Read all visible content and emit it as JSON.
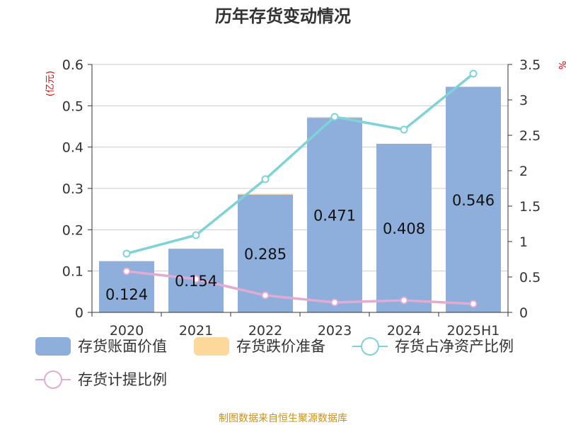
{
  "chart_data": {
    "type": "bar",
    "title": "历年存货变动情况",
    "categories": [
      "2020",
      "2021",
      "2022",
      "2023",
      "2024",
      "2025H1"
    ],
    "left_axis": {
      "unit": "(亿元)",
      "ylim": [
        0,
        0.6
      ],
      "ticks": [
        "0",
        "0.1",
        "0.2",
        "0.3",
        "0.4",
        "0.5",
        "0.6"
      ]
    },
    "right_axis": {
      "unit": "%",
      "ylim": [
        0,
        3.5
      ],
      "ticks": [
        "0",
        "0.5",
        "1",
        "1.5",
        "2",
        "2.5",
        "3",
        "3.5"
      ]
    },
    "series": [
      {
        "name": "存货账面价值",
        "type": "bar",
        "axis": "left",
        "color": "#8eaedb",
        "values": [
          0.124,
          0.154,
          0.285,
          0.471,
          0.408,
          0.546
        ],
        "labels": [
          "0.124",
          "0.154",
          "0.285",
          "0.471",
          "0.408",
          "0.546"
        ]
      },
      {
        "name": "存货跌价准备",
        "type": "bar",
        "axis": "left",
        "color": "#fcd89a",
        "values": [
          0,
          0,
          0.002,
          0.002,
          0,
          0
        ]
      },
      {
        "name": "存货占净资产比例",
        "type": "line",
        "axis": "right",
        "color": "#7fd3d6",
        "values": [
          0.83,
          1.09,
          1.88,
          2.76,
          2.58,
          3.37
        ]
      },
      {
        "name": "存货计提比例",
        "type": "line",
        "axis": "right",
        "color": "#e2abd2",
        "values": [
          0.58,
          0.47,
          0.24,
          0.14,
          0.17,
          0.12
        ]
      }
    ],
    "grid": true,
    "legend_position": "bottom"
  },
  "source": "制图数据来自恒生聚源数据库"
}
